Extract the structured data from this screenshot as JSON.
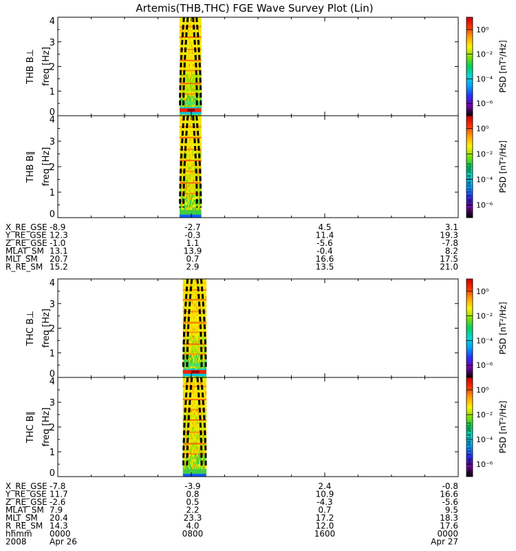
{
  "title": "Artemis(THB,THC) FGE Wave Survey Plot (Lin)",
  "chart_data": {
    "type": "heatmap",
    "panels": [
      {
        "id": "thb-bperp",
        "probe_label": "THB B⊥",
        "ylabel": "freq [Hz]",
        "ylim": [
          0,
          4
        ],
        "yticks": [
          0,
          1,
          2,
          3,
          4
        ],
        "data_window": [
          7.3,
          8.6
        ],
        "dc_band": true
      },
      {
        "id": "thb-bpar",
        "probe_label": "THB B∥",
        "ylabel": "freq [Hz]",
        "ylim": [
          0,
          4
        ],
        "yticks": [
          0,
          1,
          2,
          3,
          4
        ],
        "data_window": [
          7.3,
          8.6
        ],
        "dc_band": false
      },
      {
        "id": "thc-bperp",
        "probe_label": "THC B⊥",
        "ylabel": "freq [Hz]",
        "ylim": [
          0,
          4
        ],
        "yticks": [
          0,
          1,
          2,
          3,
          4
        ],
        "data_window": [
          7.5,
          8.9
        ],
        "dc_band": true
      },
      {
        "id": "thc-bpar",
        "probe_label": "THC B∥",
        "ylabel": "freq [Hz]",
        "ylim": [
          0,
          4
        ],
        "yticks": [
          0,
          1,
          2,
          3,
          4
        ],
        "data_window": [
          7.5,
          8.9
        ],
        "dc_band": false
      }
    ],
    "x_range_hours": [
      0,
      24
    ],
    "colorbar": {
      "label": "PSD [nT²/Hz]",
      "scale": "log",
      "range": [
        1e-07,
        10.0
      ],
      "tick_labels": [
        "10⁰",
        "10⁻²",
        "10⁻⁴",
        "10⁻⁶"
      ],
      "tick_values": [
        1,
        0.01,
        0.0001,
        1e-06
      ],
      "colors": [
        "#000000",
        "#7a00a8",
        "#2b2bff",
        "#00a0ff",
        "#00d8d8",
        "#00d060",
        "#7fe000",
        "#fff000",
        "#ffa000",
        "#ff3000",
        "#cc0000"
      ]
    },
    "timestamp_stamp": "Mon Sep 3 11:06:18 2012",
    "ephem_thb": {
      "labels": [
        "X_RE_GSE",
        "Y_RE_GSE",
        "Z_RE_GSE",
        "MLAT_SM",
        "MLT_SM",
        "R_RE_SM"
      ],
      "columns": [
        [
          "-8.9",
          "12.3",
          "-1.0",
          "13.1",
          "20.7",
          "15.2"
        ],
        [
          "-2.7",
          "-0.3",
          "1.1",
          "13.9",
          "0.7",
          "2.9"
        ],
        [
          "4.5",
          "11.4",
          "-5.6",
          "-0.4",
          "16.6",
          "13.5"
        ],
        [
          "3.1",
          "19.3",
          "-7.8",
          "8.2",
          "17.5",
          "21.0"
        ]
      ]
    },
    "ephem_thc": {
      "labels": [
        "X_RE_GSE",
        "Y_RE_GSE",
        "Z_RE_GSE",
        "MLAT_SM",
        "MLT_SM",
        "R_RE_SM",
        "hhmm",
        "2008"
      ],
      "columns": [
        [
          "-7.8",
          "11.7",
          "-2.6",
          "7.9",
          "20.4",
          "14.3",
          "0000",
          "Apr 26"
        ],
        [
          "-3.9",
          "0.8",
          "0.5",
          "2.2",
          "23.3",
          "4.0",
          "0800",
          ""
        ],
        [
          "2.4",
          "10.9",
          "-4.3",
          "0.7",
          "17.2",
          "12.0",
          "1600",
          ""
        ],
        [
          "-0.8",
          "16.6",
          "-5.6",
          "9.5",
          "18.3",
          "17.6",
          "0000",
          "Apr 27"
        ]
      ]
    }
  }
}
